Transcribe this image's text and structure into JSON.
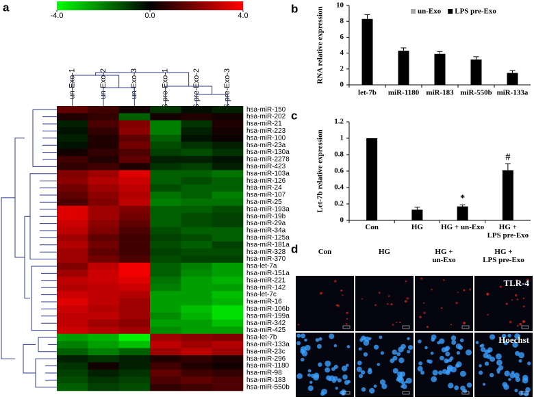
{
  "chart_data": [
    {
      "type": "heatmap",
      "panel": "a",
      "x": [
        "un-Exo-1",
        "un-Exo-2",
        "un-Exo-3",
        "LPS pre-Exo-1",
        "LPS pre-Exo-2",
        "LPS pre-Exo-3"
      ],
      "y": [
        "hsa-miR-150",
        "hsa-miR-202",
        "hsa-miR-21",
        "hsa-miR-223",
        "hsa-miR-100",
        "hsa-miR-23a",
        "hsa-miR-130a",
        "hsa-miR-2278",
        "hsa-miR-423",
        "hsa-miR-103a",
        "hsa-miR-126",
        "hsa-miR-24",
        "hsa-miR-107",
        "hsa-miR-25",
        "hsa-miR-193a",
        "hsa-miR-19b",
        "hsa-miR-29a",
        "hsa-miR-34a",
        "hsa-miR-125a",
        "hsa-miR-181a",
        "hsa-miR-328",
        "hsa-miR-370",
        "hsa-let-7a",
        "hsa-miR-151a",
        "hsa-miR-221",
        "hsa-miR-142",
        "hsa-let-7c",
        "hsa-miR-16",
        "hsa-miR-106b",
        "hsa-miR-199a",
        "hsa-miR-342",
        "hsa-miR-425",
        "hsa-let-7b",
        "hsa-miR-133a",
        "hsa-miR-23c",
        "hsa-miR-296",
        "hsa-miR-1180",
        "hsa-miR-98",
        "hsa-miR-183",
        "hsa-miR-550b"
      ],
      "values": [
        [
          1.5,
          1.0,
          0.3,
          -0.8,
          -0.2,
          -0.5
        ],
        [
          0.5,
          0.8,
          -1.5,
          0.3,
          0.5,
          0.3
        ],
        [
          -0.5,
          1.2,
          2.0,
          -2.0,
          -0.8,
          0.5
        ],
        [
          -0.3,
          0.8,
          2.2,
          -2.0,
          -0.5,
          0.3
        ],
        [
          -0.5,
          0.5,
          1.5,
          -1.5,
          -0.3,
          0.2
        ],
        [
          -0.3,
          0.5,
          1.8,
          -1.2,
          -0.8,
          -0.5
        ],
        [
          0.3,
          0.8,
          1.2,
          -1.0,
          -1.2,
          -0.8
        ],
        [
          1.0,
          0.5,
          1.5,
          -0.5,
          -0.5,
          -0.3
        ],
        [
          0.8,
          1.0,
          0.5,
          -0.8,
          -1.0,
          -0.5
        ],
        [
          2.0,
          2.5,
          3.5,
          -1.5,
          -1.5,
          -1.8
        ],
        [
          2.2,
          2.8,
          3.2,
          -1.5,
          -1.2,
          -1.5
        ],
        [
          1.8,
          2.5,
          3.0,
          -1.2,
          -1.5,
          -1.5
        ],
        [
          1.5,
          2.2,
          2.8,
          -1.8,
          -1.5,
          -2.0
        ],
        [
          1.2,
          2.0,
          3.0,
          -2.0,
          -1.8,
          -1.8
        ],
        [
          3.5,
          2.5,
          2.0,
          -1.5,
          -1.5,
          -1.2
        ],
        [
          3.5,
          2.5,
          1.8,
          -1.5,
          -1.2,
          -1.0
        ],
        [
          3.2,
          2.2,
          1.5,
          -1.5,
          -1.2,
          -1.0
        ],
        [
          3.0,
          2.0,
          1.2,
          -1.2,
          -1.5,
          -1.5
        ],
        [
          2.5,
          1.5,
          1.0,
          -1.0,
          -1.2,
          -1.5
        ],
        [
          2.8,
          1.8,
          1.0,
          -1.2,
          -1.5,
          -1.0
        ],
        [
          2.5,
          1.5,
          1.0,
          -1.0,
          -1.2,
          -1.2
        ],
        [
          2.5,
          1.8,
          1.2,
          -1.2,
          -1.0,
          -1.0
        ],
        [
          2.0,
          3.0,
          3.8,
          -1.5,
          -2.0,
          -2.5
        ],
        [
          2.5,
          3.2,
          3.8,
          -1.5,
          -2.2,
          -2.5
        ],
        [
          3.0,
          3.2,
          3.5,
          -1.8,
          -2.5,
          -2.8
        ],
        [
          2.8,
          3.0,
          3.2,
          -2.0,
          -2.5,
          -2.5
        ],
        [
          3.2,
          3.0,
          2.8,
          -2.5,
          -2.5,
          -3.0
        ],
        [
          3.5,
          3.0,
          2.5,
          -2.5,
          -2.5,
          -2.8
        ],
        [
          3.2,
          2.8,
          2.5,
          -2.5,
          -3.0,
          -3.5
        ],
        [
          3.0,
          3.0,
          2.5,
          -2.2,
          -2.8,
          -3.5
        ],
        [
          3.0,
          2.5,
          2.2,
          -2.5,
          -2.5,
          -3.0
        ],
        [
          3.2,
          2.8,
          2.5,
          -2.2,
          -2.5,
          -2.5
        ],
        [
          -2.5,
          -2.8,
          -3.8,
          2.5,
          2.2,
          2.0
        ],
        [
          -2.0,
          -2.5,
          -3.0,
          3.0,
          2.5,
          2.8
        ],
        [
          -1.5,
          -2.0,
          -1.5,
          2.5,
          3.0,
          2.5
        ],
        [
          -0.5,
          -0.8,
          -0.5,
          0.5,
          0.8,
          0.5
        ],
        [
          -0.8,
          0.3,
          -0.5,
          1.0,
          0.5,
          0.3
        ],
        [
          -1.0,
          -0.5,
          -0.8,
          1.5,
          1.0,
          0.8
        ],
        [
          -1.2,
          -0.8,
          -1.0,
          1.2,
          1.5,
          1.2
        ],
        [
          -1.5,
          -1.0,
          -1.2,
          0.8,
          1.0,
          1.2
        ]
      ],
      "zlim": [
        -4,
        4
      ],
      "zticks": [
        {
          "value": -4,
          "label": "-4.0"
        },
        {
          "value": 0,
          "label": "0.0"
        },
        {
          "value": 4,
          "label": "4.0"
        }
      ],
      "colors": [
        "#00ff00",
        "#000000",
        "#ff0000"
      ]
    },
    {
      "type": "bar",
      "panel": "b",
      "y_label": "RNA relative expression",
      "categories": [
        "let-7b",
        "miR-1180",
        "miR-183",
        "miR-550b",
        "miR-133a"
      ],
      "series": [
        {
          "name": "un-Exo",
          "color": "#aaaaaa",
          "values": [
            null,
            null,
            null,
            null,
            null
          ]
        },
        {
          "name": "LPS pre-Exo",
          "color": "#000000",
          "values": [
            8.3,
            4.3,
            3.9,
            3.2,
            1.5
          ],
          "errors": [
            0.55,
            0.35,
            0.3,
            0.35,
            0.3
          ]
        }
      ],
      "ylim": [
        0,
        10
      ],
      "yticks": [
        0,
        2,
        4,
        6,
        8,
        10
      ]
    },
    {
      "type": "bar",
      "panel": "c",
      "y_label": "Let-7b relative expression",
      "categories": [
        "Con",
        "HG",
        "HG + un-Exo",
        "HG +\nLPS pre-Exo"
      ],
      "series": [
        {
          "color": "#000000",
          "values": [
            1,
            0.13,
            0.17,
            0.61
          ],
          "errors": [
            0,
            0.03,
            0.02,
            0.08
          ]
        }
      ],
      "markers": [
        null,
        null,
        "*",
        "#"
      ],
      "ylim": [
        0,
        1.2
      ],
      "yticks": [
        0,
        0.2,
        0.4,
        0.6,
        0.8,
        1,
        1.2
      ]
    }
  ],
  "panel_d": {
    "label": "d",
    "columns": [
      "Con",
      "HG",
      "HG +\nun-Exo",
      "HG +\nLPS pre-Exo"
    ],
    "rows": [
      "TLR-4",
      "Hoechst"
    ]
  }
}
